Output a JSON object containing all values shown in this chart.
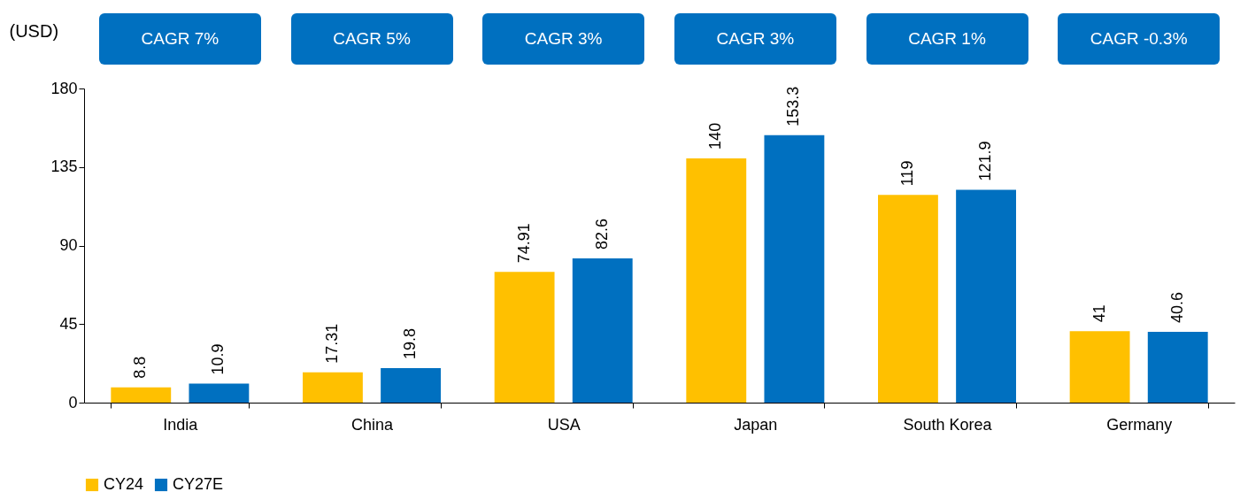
{
  "chart_data": {
    "type": "bar",
    "ylabel": "(USD)",
    "categories": [
      "India",
      "China",
      "USA",
      "Japan",
      "South Korea",
      "Germany"
    ],
    "series": [
      {
        "name": "CY24",
        "color": "#ffc000",
        "values": [
          8.8,
          17.31,
          74.91,
          140,
          119,
          41
        ]
      },
      {
        "name": "CY27E",
        "color": "#0070c0",
        "values": [
          10.9,
          19.8,
          82.6,
          153.3,
          121.9,
          40.6
        ]
      }
    ],
    "ylim": [
      0,
      180
    ],
    "yticks": [
      0,
      45,
      90,
      135,
      180
    ],
    "data_labels": true,
    "legend": "bottom",
    "annotations": [
      "CAGR 7%",
      "CAGR 5%",
      "CAGR 3%",
      "CAGR 3%",
      "CAGR 1%",
      "CAGR -0.3%"
    ]
  }
}
